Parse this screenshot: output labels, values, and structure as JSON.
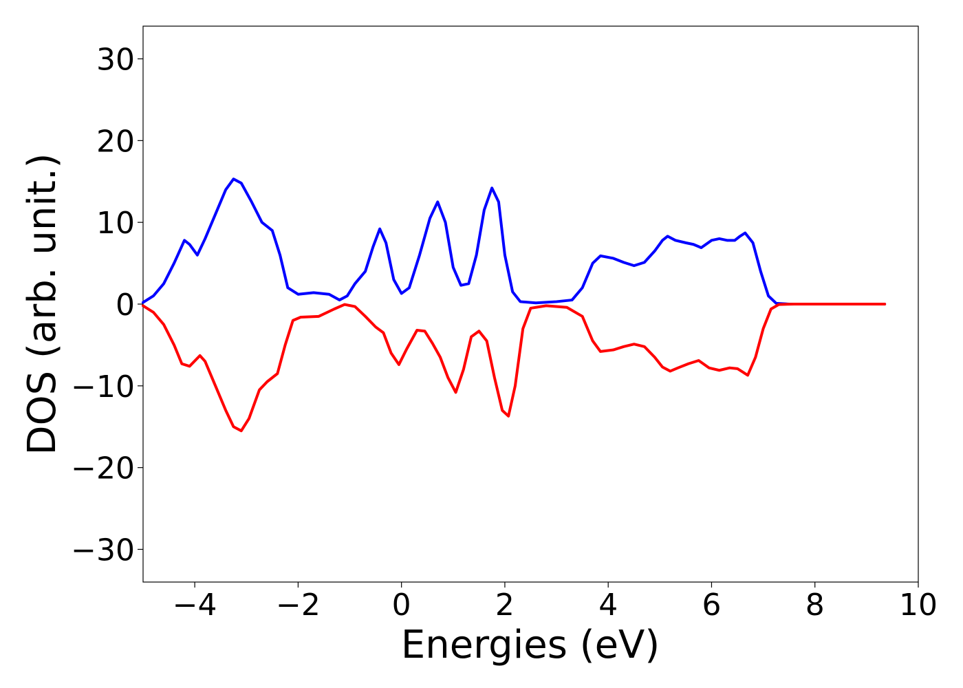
{
  "chart_data": {
    "type": "line",
    "title": "",
    "xlabel": "Energies (eV)",
    "ylabel": "DOS (arb. unit.)",
    "xlim": [
      -5,
      10
    ],
    "ylim": [
      -34,
      34
    ],
    "xticks": [
      -4,
      -2,
      0,
      2,
      4,
      6,
      8,
      10
    ],
    "xtick_labels": [
      "−4",
      "−2",
      "0",
      "2",
      "4",
      "6",
      "8",
      "10"
    ],
    "yticks": [
      30,
      20,
      10,
      0,
      -10,
      -20,
      -30
    ],
    "ytick_labels": [
      "30",
      "20",
      "10",
      "0",
      "−10",
      "−20",
      "−30"
    ],
    "grid": false,
    "legend": "none",
    "series": [
      {
        "color": "#0000ff",
        "points": [
          [
            -5.0,
            0.2
          ],
          [
            -4.8,
            1.0
          ],
          [
            -4.6,
            2.5
          ],
          [
            -4.4,
            5.0
          ],
          [
            -4.2,
            7.8
          ],
          [
            -4.1,
            7.3
          ],
          [
            -3.95,
            6.0
          ],
          [
            -3.8,
            8.0
          ],
          [
            -3.6,
            11.0
          ],
          [
            -3.4,
            14.0
          ],
          [
            -3.25,
            15.3
          ],
          [
            -3.1,
            14.8
          ],
          [
            -2.9,
            12.5
          ],
          [
            -2.7,
            10.0
          ],
          [
            -2.5,
            9.0
          ],
          [
            -2.35,
            6.0
          ],
          [
            -2.2,
            2.0
          ],
          [
            -2.0,
            1.2
          ],
          [
            -1.7,
            1.4
          ],
          [
            -1.4,
            1.2
          ],
          [
            -1.2,
            0.5
          ],
          [
            -1.05,
            1.0
          ],
          [
            -0.9,
            2.5
          ],
          [
            -0.7,
            4.0
          ],
          [
            -0.55,
            7.0
          ],
          [
            -0.42,
            9.2
          ],
          [
            -0.3,
            7.5
          ],
          [
            -0.15,
            3.0
          ],
          [
            0.0,
            1.3
          ],
          [
            0.15,
            2.0
          ],
          [
            0.35,
            6.0
          ],
          [
            0.55,
            10.5
          ],
          [
            0.7,
            12.5
          ],
          [
            0.85,
            10.0
          ],
          [
            1.0,
            4.5
          ],
          [
            1.15,
            2.3
          ],
          [
            1.3,
            2.5
          ],
          [
            1.45,
            6.0
          ],
          [
            1.6,
            11.5
          ],
          [
            1.75,
            14.2
          ],
          [
            1.88,
            12.5
          ],
          [
            2.0,
            6.0
          ],
          [
            2.15,
            1.5
          ],
          [
            2.3,
            0.3
          ],
          [
            2.6,
            0.15
          ],
          [
            3.0,
            0.3
          ],
          [
            3.3,
            0.5
          ],
          [
            3.5,
            2.0
          ],
          [
            3.7,
            5.0
          ],
          [
            3.85,
            5.9
          ],
          [
            4.1,
            5.6
          ],
          [
            4.3,
            5.1
          ],
          [
            4.5,
            4.7
          ],
          [
            4.7,
            5.1
          ],
          [
            4.9,
            6.5
          ],
          [
            5.05,
            7.8
          ],
          [
            5.15,
            8.3
          ],
          [
            5.3,
            7.8
          ],
          [
            5.5,
            7.5
          ],
          [
            5.65,
            7.3
          ],
          [
            5.8,
            6.9
          ],
          [
            6.0,
            7.8
          ],
          [
            6.15,
            8.0
          ],
          [
            6.3,
            7.8
          ],
          [
            6.45,
            7.8
          ],
          [
            6.55,
            8.3
          ],
          [
            6.65,
            8.7
          ],
          [
            6.8,
            7.5
          ],
          [
            6.95,
            4.0
          ],
          [
            7.1,
            1.0
          ],
          [
            7.25,
            0.1
          ],
          [
            7.5,
            0.0
          ],
          [
            8.0,
            0.0
          ],
          [
            8.5,
            0.0
          ],
          [
            9.0,
            0.0
          ],
          [
            9.35,
            0.0
          ]
        ]
      },
      {
        "color": "#ff0000",
        "points": [
          [
            -5.0,
            -0.2
          ],
          [
            -4.8,
            -1.0
          ],
          [
            -4.6,
            -2.5
          ],
          [
            -4.4,
            -5.0
          ],
          [
            -4.25,
            -7.3
          ],
          [
            -4.1,
            -7.6
          ],
          [
            -3.9,
            -6.3
          ],
          [
            -3.8,
            -7.0
          ],
          [
            -3.6,
            -10.0
          ],
          [
            -3.4,
            -13.0
          ],
          [
            -3.25,
            -15.0
          ],
          [
            -3.1,
            -15.5
          ],
          [
            -2.95,
            -14.0
          ],
          [
            -2.75,
            -10.5
          ],
          [
            -2.6,
            -9.5
          ],
          [
            -2.4,
            -8.5
          ],
          [
            -2.25,
            -5.0
          ],
          [
            -2.1,
            -2.0
          ],
          [
            -1.95,
            -1.6
          ],
          [
            -1.6,
            -1.5
          ],
          [
            -1.3,
            -0.6
          ],
          [
            -1.1,
            -0.05
          ],
          [
            -0.9,
            -0.3
          ],
          [
            -0.7,
            -1.5
          ],
          [
            -0.5,
            -2.8
          ],
          [
            -0.35,
            -3.5
          ],
          [
            -0.2,
            -6.0
          ],
          [
            -0.05,
            -7.4
          ],
          [
            0.1,
            -5.5
          ],
          [
            0.3,
            -3.2
          ],
          [
            0.45,
            -3.3
          ],
          [
            0.6,
            -4.8
          ],
          [
            0.75,
            -6.5
          ],
          [
            0.9,
            -9.0
          ],
          [
            1.05,
            -10.8
          ],
          [
            1.2,
            -8.0
          ],
          [
            1.35,
            -4.0
          ],
          [
            1.5,
            -3.3
          ],
          [
            1.65,
            -4.5
          ],
          [
            1.8,
            -9.0
          ],
          [
            1.95,
            -13.0
          ],
          [
            2.07,
            -13.7
          ],
          [
            2.2,
            -10.0
          ],
          [
            2.35,
            -3.0
          ],
          [
            2.5,
            -0.5
          ],
          [
            2.8,
            -0.2
          ],
          [
            3.2,
            -0.4
          ],
          [
            3.5,
            -1.5
          ],
          [
            3.7,
            -4.5
          ],
          [
            3.85,
            -5.8
          ],
          [
            4.1,
            -5.6
          ],
          [
            4.3,
            -5.2
          ],
          [
            4.5,
            -4.9
          ],
          [
            4.7,
            -5.2
          ],
          [
            4.9,
            -6.5
          ],
          [
            5.05,
            -7.7
          ],
          [
            5.2,
            -8.2
          ],
          [
            5.35,
            -7.8
          ],
          [
            5.55,
            -7.3
          ],
          [
            5.75,
            -6.9
          ],
          [
            5.95,
            -7.8
          ],
          [
            6.15,
            -8.1
          ],
          [
            6.35,
            -7.8
          ],
          [
            6.5,
            -7.9
          ],
          [
            6.6,
            -8.3
          ],
          [
            6.7,
            -8.7
          ],
          [
            6.85,
            -6.5
          ],
          [
            7.0,
            -3.0
          ],
          [
            7.15,
            -0.6
          ],
          [
            7.3,
            -0.05
          ],
          [
            7.6,
            0.0
          ],
          [
            8.0,
            0.0
          ],
          [
            8.5,
            0.0
          ],
          [
            9.0,
            0.0
          ],
          [
            9.35,
            0.0
          ]
        ]
      }
    ]
  }
}
